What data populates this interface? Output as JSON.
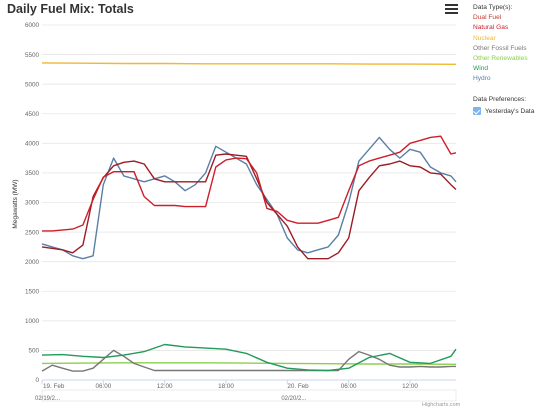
{
  "title": "Daily Fuel Mix: Totals",
  "menu_icon": "hamburger-menu-icon",
  "legend": {
    "header": "Data Type(s):",
    "items": [
      {
        "label": "Dual Fuel",
        "color": "#c0392b"
      },
      {
        "label": "Natural Gas",
        "color": "#cc1f2b"
      },
      {
        "label": "Nuclear",
        "color": "#f0b833"
      },
      {
        "label": "Other Fossil Fuels",
        "color": "#777777"
      },
      {
        "label": "Other Renewables",
        "color": "#8ccf4d"
      },
      {
        "label": "Wind",
        "color": "#229a5a"
      },
      {
        "label": "Hydro",
        "color": "#5a7fa6"
      }
    ]
  },
  "preferences": {
    "header": "Data Preferences:",
    "option_label": "Yesterday's Data",
    "checked": true
  },
  "credits": "Highcharts.com",
  "chart_data": {
    "type": "line",
    "title": "Daily Fuel Mix: Totals",
    "ylabel": "Megawatts (MW)",
    "xlabel": "",
    "ylim": [
      0,
      6000
    ],
    "yticks": [
      0,
      500,
      1000,
      1500,
      2000,
      2500,
      3000,
      3500,
      4000,
      4500,
      5000,
      5500,
      6000
    ],
    "ytick_labels": [
      "0",
      "500",
      "1000",
      "1500",
      "2000",
      "2500",
      "3000",
      "3500",
      "4000",
      "4500",
      "5000",
      "5500",
      "6000"
    ],
    "xlim": [
      0,
      40.5
    ],
    "xticks": [
      0,
      6,
      12,
      18,
      24,
      30,
      36
    ],
    "xtick_labels": [
      "19. Feb",
      "06:00",
      "12:00",
      "18:00",
      "20. Feb",
      "06:00",
      "12:00"
    ],
    "navigator_labels": [
      "02/19/2...",
      "02/20/2..."
    ],
    "grid": true,
    "legend_position": "right",
    "series": [
      {
        "name": "Nuclear",
        "color": "#f0b833",
        "x": [
          0,
          4,
          8,
          12,
          16,
          20,
          24,
          28,
          32,
          36,
          40.5
        ],
        "y": [
          5360,
          5355,
          5350,
          5350,
          5345,
          5345,
          5345,
          5345,
          5340,
          5340,
          5335
        ]
      },
      {
        "name": "Natural Gas",
        "color": "#cc1f2b",
        "x": [
          0,
          1,
          3,
          4,
          5,
          6,
          7,
          8,
          9,
          10,
          11,
          12,
          13,
          14,
          15,
          16,
          17,
          18,
          19,
          20,
          21,
          22,
          23,
          24,
          25,
          26,
          27,
          28,
          29,
          30,
          31,
          32,
          33,
          34,
          35,
          36,
          37,
          38,
          39,
          40,
          40.5
        ],
        "y": [
          2520,
          2520,
          2550,
          2620,
          3050,
          3430,
          3520,
          3520,
          3520,
          3100,
          2950,
          2950,
          2950,
          2930,
          2930,
          2930,
          3600,
          3720,
          3750,
          3740,
          3500,
          2900,
          2850,
          2700,
          2650,
          2650,
          2650,
          2700,
          2750,
          3200,
          3620,
          3700,
          3750,
          3800,
          3850,
          4000,
          4050,
          4100,
          4120,
          3820,
          3840
        ]
      },
      {
        "name": "Dual Fuel",
        "color": "#9c1c24",
        "x": [
          0,
          2,
          3,
          4,
          5,
          6,
          7,
          8,
          9,
          10,
          11,
          12,
          13,
          14,
          15,
          16,
          17,
          18,
          19,
          20,
          21,
          22,
          23,
          24,
          25,
          26,
          27,
          28,
          29,
          30,
          31,
          32,
          33,
          34,
          35,
          36,
          37,
          38,
          39,
          40,
          40.5
        ],
        "y": [
          2250,
          2200,
          2150,
          2280,
          3100,
          3420,
          3620,
          3680,
          3700,
          3650,
          3400,
          3350,
          3350,
          3350,
          3350,
          3350,
          3800,
          3820,
          3800,
          3780,
          3400,
          3000,
          2800,
          2600,
          2250,
          2050,
          2050,
          2050,
          2150,
          2400,
          3200,
          3420,
          3620,
          3650,
          3700,
          3620,
          3600,
          3500,
          3480,
          3300,
          3220
        ]
      },
      {
        "name": "Hydro",
        "color": "#5a7fa6",
        "x": [
          0,
          1,
          2,
          3,
          4,
          5,
          6,
          7,
          8,
          9,
          10,
          11,
          12,
          13,
          14,
          15,
          16,
          17,
          18,
          19,
          20,
          21,
          22,
          23,
          24,
          25,
          26,
          27,
          28,
          29,
          30,
          31,
          32,
          33,
          34,
          35,
          36,
          37,
          38,
          39,
          40,
          40.5
        ],
        "y": [
          2300,
          2250,
          2200,
          2100,
          2050,
          2100,
          3300,
          3750,
          3450,
          3400,
          3350,
          3400,
          3450,
          3350,
          3200,
          3300,
          3500,
          3950,
          3850,
          3750,
          3650,
          3300,
          3050,
          2800,
          2400,
          2200,
          2150,
          2200,
          2250,
          2450,
          3000,
          3700,
          3900,
          4100,
          3900,
          3750,
          3900,
          3850,
          3600,
          3500,
          3450,
          3350
        ]
      },
      {
        "name": "Wind",
        "color": "#229a5a",
        "x": [
          0,
          2,
          4,
          6,
          8,
          10,
          12,
          14,
          16,
          18,
          20,
          22,
          24,
          26,
          28,
          30,
          32,
          34,
          36,
          38,
          40,
          40.5
        ],
        "y": [
          420,
          430,
          400,
          380,
          420,
          480,
          600,
          560,
          540,
          520,
          450,
          300,
          200,
          170,
          160,
          200,
          380,
          450,
          300,
          280,
          400,
          520
        ]
      },
      {
        "name": "Other Renewables",
        "color": "#8ccf4d",
        "x": [
          0,
          4,
          8,
          12,
          16,
          20,
          24,
          28,
          32,
          36,
          40.5
        ],
        "y": [
          280,
          285,
          290,
          290,
          290,
          285,
          280,
          275,
          270,
          270,
          265
        ]
      },
      {
        "name": "Other Fossil Fuels",
        "color": "#777777",
        "x": [
          0,
          1,
          2,
          3,
          4,
          5,
          6,
          7,
          8,
          9,
          10,
          11,
          12,
          13,
          14,
          15,
          16,
          17,
          18,
          19,
          20,
          21,
          22,
          23,
          24,
          25,
          26,
          27,
          28,
          29,
          30,
          31,
          32,
          33,
          34,
          35,
          36,
          37,
          38,
          39,
          40,
          40.5
        ],
        "y": [
          150,
          250,
          200,
          150,
          150,
          200,
          350,
          500,
          400,
          280,
          220,
          160,
          160,
          160,
          160,
          160,
          160,
          160,
          160,
          160,
          160,
          160,
          160,
          160,
          160,
          160,
          160,
          160,
          160,
          160,
          350,
          480,
          420,
          350,
          250,
          220,
          220,
          230,
          220,
          220,
          230,
          230
        ]
      },
      {
        "name": "Dual Fuel",
        "color": "#c0392b",
        "x": [],
        "y": []
      }
    ]
  }
}
